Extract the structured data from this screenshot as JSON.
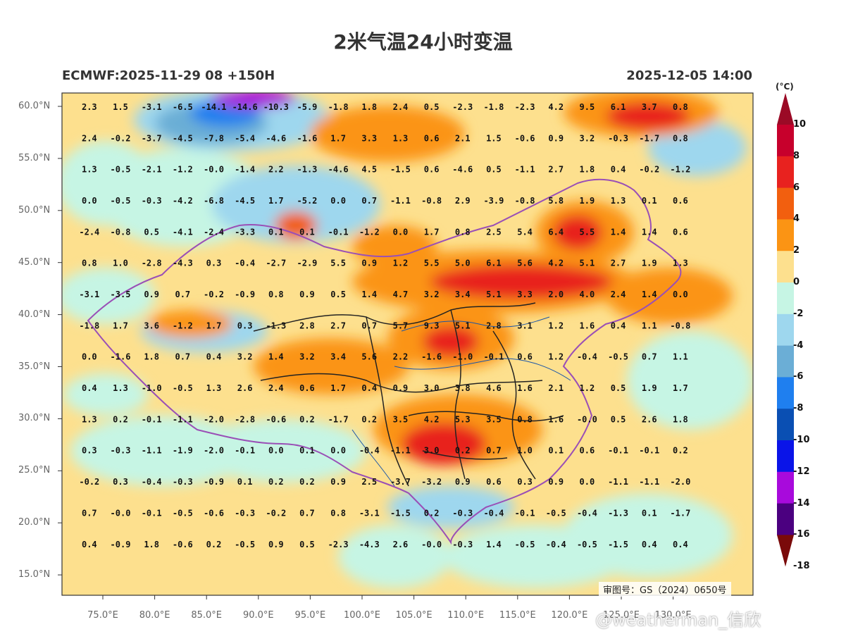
{
  "title": "2米气温24小时变温",
  "model_run": "ECMWF:2025-11-29 08 +150H",
  "valid_time": "2025-12-05 14:00",
  "colorbar": {
    "unit": "(°C)",
    "labels": [
      "10",
      "8",
      "6",
      "4",
      "2",
      "0",
      "-2",
      "-4",
      "-6",
      "-8",
      "-10",
      "-12",
      "-14",
      "-16",
      "-18"
    ],
    "colors": [
      "#9b0a26",
      "#c7002c",
      "#e8221f",
      "#f25f0f",
      "#fb9414",
      "#fde08e",
      "#c6f5e4",
      "#9ed7ee",
      "#6baed6",
      "#1f7fef",
      "#0a4fb3",
      "#0a14e8",
      "#a80adc",
      "#4b0080",
      "#7a0a0a"
    ]
  },
  "map_data": {
    "lat_labels": [
      "60.0°N",
      "55.0°N",
      "50.0°N",
      "45.0°N",
      "40.0°N",
      "35.0°N",
      "30.0°N",
      "25.0°N",
      "20.0°N",
      "15.0°N"
    ],
    "lon_labels": [
      "75.0°E",
      "80.0°E",
      "85.0°E",
      "90.0°E",
      "95.0°E",
      "100.0°E",
      "105.0°E",
      "110.0°E",
      "115.0°E",
      "120.0°E",
      "125.0°E",
      "130.0°E"
    ],
    "grid_lon_start": 72,
    "grid_lon_step": 3,
    "grid_lat_start": 60,
    "grid_lat_step": -3,
    "values": [
      [
        "2.3",
        "1.5",
        "-3.1",
        "-6.5",
        "-14.1",
        "-14.6",
        "-10.3",
        "-5.9",
        "-1.8",
        "1.8",
        "2.4",
        "0.5",
        "-2.3",
        "-1.8",
        "-2.3",
        "4.2",
        "9.5",
        "6.1",
        "3.7",
        "0.8"
      ],
      [
        "2.4",
        "-0.2",
        "-3.7",
        "-4.5",
        "-7.8",
        "-5.4",
        "-4.6",
        "-1.6",
        "1.7",
        "3.3",
        "1.3",
        "0.6",
        "2.1",
        "1.5",
        "-0.6",
        "0.9",
        "3.2",
        "-0.3",
        "-1.7",
        "0.8"
      ],
      [
        "1.3",
        "-0.5",
        "-2.1",
        "-1.2",
        "-0.0",
        "-1.4",
        "2.2",
        "-1.3",
        "-4.6",
        "4.5",
        "-1.5",
        "0.6",
        "-4.6",
        "0.5",
        "-1.1",
        "2.7",
        "1.8",
        "0.4",
        "-0.2",
        "-1.2"
      ],
      [
        "0.0",
        "-0.5",
        "-0.3",
        "-4.2",
        "-6.8",
        "-4.5",
        "1.7",
        "-5.2",
        "0.0",
        "0.7",
        "-1.1",
        "-0.8",
        "2.9",
        "-3.9",
        "-0.8",
        "5.8",
        "1.9",
        "1.3",
        "0.1",
        "0.6"
      ],
      [
        "-2.4",
        "-0.8",
        "0.5",
        "-4.1",
        "-2.4",
        "-3.3",
        "0.1",
        "0.1",
        "-0.1",
        "-1.2",
        "0.0",
        "1.7",
        "0.8",
        "2.5",
        "5.4",
        "6.4",
        "5.5",
        "1.4",
        "1.4",
        "0.6"
      ],
      [
        "0.8",
        "1.0",
        "-2.8",
        "-4.3",
        "0.3",
        "-0.4",
        "-2.7",
        "-2.9",
        "5.5",
        "0.9",
        "1.2",
        "5.5",
        "5.0",
        "6.1",
        "5.6",
        "4.2",
        "5.1",
        "2.7",
        "1.9",
        "1.3"
      ],
      [
        "-3.1",
        "-3.5",
        "0.9",
        "0.7",
        "-0.2",
        "-0.9",
        "0.8",
        "0.9",
        "0.5",
        "1.4",
        "4.7",
        "3.2",
        "3.4",
        "5.1",
        "3.3",
        "2.0",
        "4.0",
        "2.4",
        "1.4",
        "0.0"
      ],
      [
        "-1.8",
        "1.7",
        "3.6",
        "-1.2",
        "1.7",
        "0.3",
        "-1.3",
        "2.8",
        "2.7",
        "0.7",
        "5.7",
        "9.3",
        "5.1",
        "2.8",
        "3.1",
        "1.2",
        "1.6",
        "0.4",
        "1.1",
        "-0.8"
      ],
      [
        "0.0",
        "-1.6",
        "1.8",
        "0.7",
        "0.4",
        "3.2",
        "1.4",
        "3.2",
        "3.4",
        "5.6",
        "2.2",
        "-1.6",
        "-1.0",
        "-0.1",
        "0.6",
        "1.2",
        "-0.4",
        "-0.5",
        "0.7",
        "1.1"
      ],
      [
        "0.4",
        "1.3",
        "-1.0",
        "-0.5",
        "1.3",
        "2.6",
        "2.4",
        "0.6",
        "1.7",
        "0.4",
        "0.9",
        "3.0",
        "3.8",
        "4.6",
        "1.6",
        "2.1",
        "1.2",
        "0.5",
        "1.9",
        "1.7"
      ],
      [
        "1.3",
        "0.2",
        "-0.1",
        "-1.1",
        "-2.0",
        "-2.8",
        "-0.6",
        "0.2",
        "-1.7",
        "0.2",
        "3.5",
        "4.2",
        "5.3",
        "3.5",
        "0.8",
        "1.6",
        "-0.0",
        "0.5",
        "2.6",
        "1.8"
      ],
      [
        "0.3",
        "-0.3",
        "-1.1",
        "-1.9",
        "-2.0",
        "-0.1",
        "0.0",
        "0.1",
        "0.0",
        "-0.4",
        "-1.1",
        "3.0",
        "0.2",
        "0.7",
        "1.0",
        "0.1",
        "0.6",
        "-0.1",
        "-0.1",
        "0.2"
      ],
      [
        "-0.2",
        "0.3",
        "-0.4",
        "-0.3",
        "-0.9",
        "0.1",
        "0.2",
        "0.2",
        "0.9",
        "2.5",
        "-3.7",
        "-3.2",
        "0.9",
        "0.6",
        "0.3",
        "0.9",
        "0.0",
        "-1.1",
        "-1.1",
        "-2.0"
      ],
      [
        "0.7",
        "-0.0",
        "-0.1",
        "-0.5",
        "-0.6",
        "-0.3",
        "-0.2",
        "0.7",
        "0.8",
        "-3.1",
        "-1.5",
        "0.2",
        "-0.3",
        "-0.4",
        "-0.1",
        "-0.5",
        "-0.4",
        "-1.3",
        "0.1",
        "-1.7"
      ],
      [
        "0.4",
        "-0.9",
        "1.8",
        "-0.6",
        "0.2",
        "-0.5",
        "0.9",
        "0.5",
        "-2.3",
        "-4.3",
        "2.6",
        "-0.0",
        "-0.3",
        "1.4",
        "-0.5",
        "-0.4",
        "-0.5",
        "-1.5",
        "0.4",
        "0.4"
      ]
    ]
  },
  "map_review_number": "审图号：GS（2024）0650号",
  "watermark": "@weatherman_信欣"
}
